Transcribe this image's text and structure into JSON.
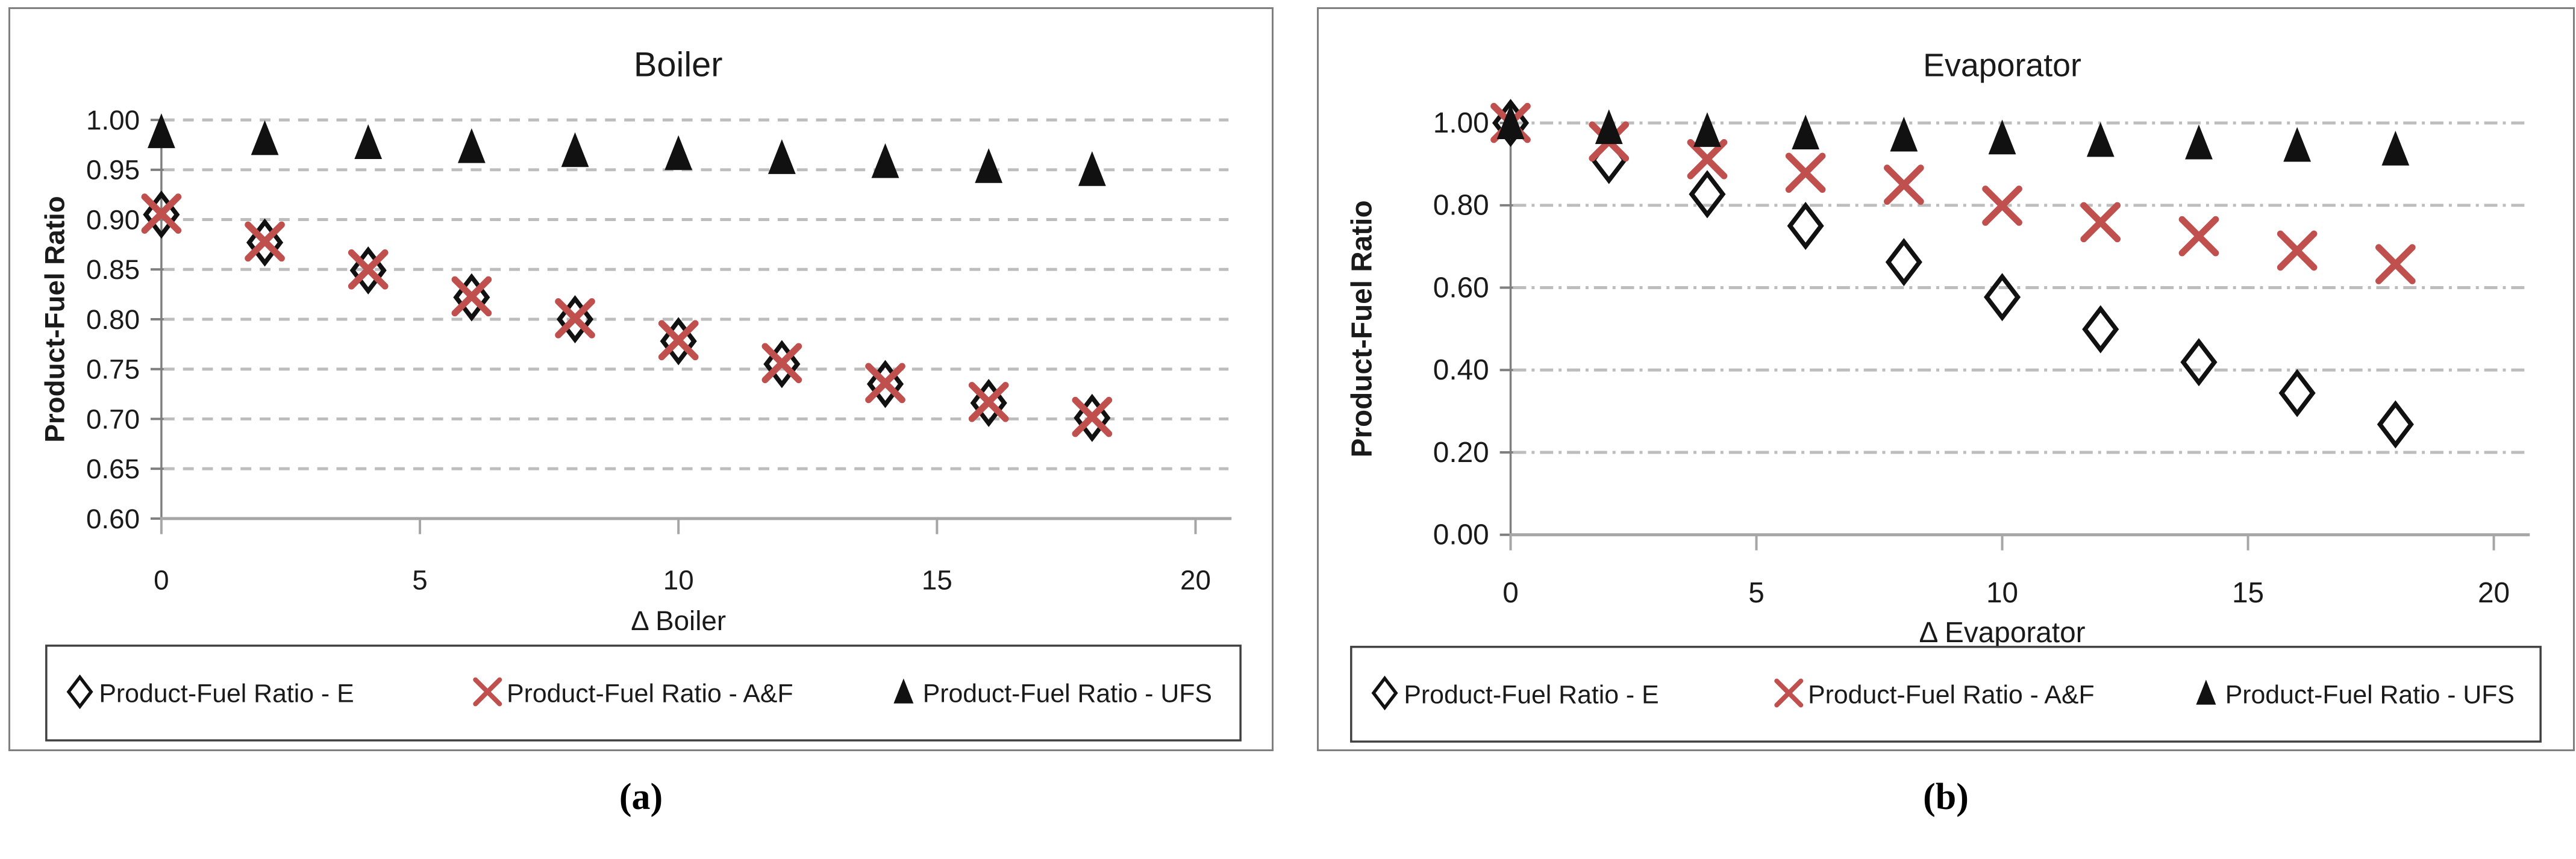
{
  "figure": {
    "captions": {
      "a": "(a)",
      "b": "(b)"
    }
  },
  "colors": {
    "marker_black": "#111111",
    "marker_red": "#c0504d",
    "gridline": "#bdbdbd",
    "x_axis": "#a6a6a6",
    "y_axis": "#7f7f7f",
    "panel_border": "#7f7f7f",
    "legend_border": "#404040",
    "text": "#1a1a1a"
  },
  "chart_data": [
    {
      "type": "scatter",
      "title": "Boiler",
      "xlabel": "Δ Boiler",
      "ylabel": "Product-Fuel Ratio",
      "xlim": [
        0,
        20
      ],
      "xticks": [
        "0",
        "5",
        "10",
        "15",
        "20"
      ],
      "ylim": [
        0.6,
        1.0
      ],
      "ytick_labels": [
        "1.00",
        "0.95",
        "0.90",
        "0.85",
        "0.80",
        "0.75",
        "0.70",
        "0.65",
        "0.60"
      ],
      "grid_style": "dashed",
      "legend_position": "bottom-box",
      "x": [
        0,
        2,
        4,
        6,
        8,
        10,
        12,
        14,
        16,
        18
      ],
      "series": [
        {
          "name": "Product-Fuel Ratio -  E",
          "marker": "open-diamond",
          "color": "#111111",
          "values": [
            0.905,
            0.877,
            0.849,
            0.822,
            0.8,
            0.778,
            0.755,
            0.735,
            0.716,
            0.701
          ]
        },
        {
          "name": "Product-Fuel Ratio -  A&F",
          "marker": "x-cross",
          "color": "#c0504d",
          "values": [
            0.906,
            0.878,
            0.85,
            0.823,
            0.801,
            0.779,
            0.756,
            0.736,
            0.717,
            0.702
          ]
        },
        {
          "name": "Product-Fuel Ratio - UFS",
          "marker": "filled-triangle",
          "color": "#111111",
          "values": [
            0.988,
            0.981,
            0.977,
            0.973,
            0.969,
            0.966,
            0.962,
            0.958,
            0.953,
            0.95
          ]
        }
      ]
    },
    {
      "type": "scatter",
      "title": "Evaporator",
      "xlabel": "Δ Evaporator",
      "ylabel": "Product-Fuel Ratio",
      "xlim": [
        0,
        20
      ],
      "xticks": [
        "0",
        "5",
        "10",
        "15",
        "20"
      ],
      "ylim": [
        0.0,
        1.0
      ],
      "ytick_labels": [
        "1.00",
        "0.80",
        "0.60",
        "0.40",
        "0.20",
        "0.00"
      ],
      "grid_style": "dashdot",
      "legend_position": "bottom-box",
      "x": [
        0,
        2,
        4,
        6,
        8,
        10,
        12,
        14,
        16,
        18
      ],
      "series": [
        {
          "name": "Product-Fuel Ratio -  E",
          "marker": "open-diamond",
          "color": "#111111",
          "values": [
            1.0,
            0.91,
            0.827,
            0.75,
            0.662,
            0.577,
            0.499,
            0.419,
            0.344,
            0.268
          ]
        },
        {
          "name": "Product-Fuel Ratio -  A&F",
          "marker": "x-cross",
          "color": "#c0504d",
          "values": [
            1.0,
            0.955,
            0.912,
            0.879,
            0.85,
            0.799,
            0.759,
            0.725,
            0.69,
            0.657
          ]
        },
        {
          "name": "Product-Fuel Ratio - UFS",
          "marker": "filled-triangle",
          "color": "#111111",
          "values": [
            1.0,
            0.988,
            0.981,
            0.975,
            0.97,
            0.963,
            0.957,
            0.951,
            0.945,
            0.936
          ]
        }
      ]
    }
  ]
}
